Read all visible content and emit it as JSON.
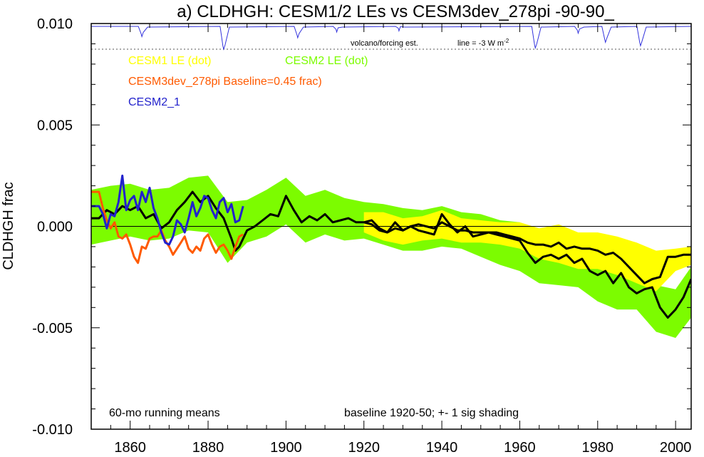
{
  "chart_data": {
    "type": "line",
    "title": "a) CLDHGH: CESM1/2 LEs vs CESM3dev_278pi -90-90_",
    "ylabel": "CLDHGH frac",
    "xlabel": "",
    "xlim": [
      1850,
      2004
    ],
    "ylim": [
      -0.01,
      0.01
    ],
    "x_ticks": [
      1860,
      1880,
      1900,
      1920,
      1940,
      1960,
      1980,
      2000
    ],
    "x_tick_labels": [
      "1860",
      "1880",
      "1900",
      "1920",
      "1940",
      "1960",
      "1980",
      "2000"
    ],
    "y_ticks": [
      0.01,
      0.005,
      0.0,
      -0.005,
      -0.01
    ],
    "y_tick_labels": [
      "0.010",
      "0.005",
      "0.000",
      "-0.005",
      "-0.010"
    ],
    "zero_line": true,
    "grid": false,
    "legend_entries": [
      {
        "label": "CESM1 LE (dot)",
        "color": "#ffff00"
      },
      {
        "label": "CESM2 LE (dot)",
        "color": "#7cfc00"
      },
      {
        "label": "CESM3dev_278pi Baseline=0.45 frac)",
        "color": "#ff5a00"
      },
      {
        "label": "CESM2_1",
        "color": "#2222cc"
      }
    ],
    "annotations": {
      "volcano_label": "volcano/forcing est.",
      "line_label": "line = -3 W m",
      "line_label_sup": "-2",
      "bottom_left": "60-mo running means",
      "bottom_right": "baseline 1920-50; +- 1 sig shading"
    },
    "colors": {
      "cesm1_band": "#ffff00",
      "cesm2_band": "#7cfc00",
      "cesm3": "#ff5a00",
      "cesm2_1": "#2222cc",
      "ensemble_mean": "#000000",
      "volcano": "#3333dd"
    },
    "volcano_events": [
      {
        "year": 1863,
        "depth": 0.45
      },
      {
        "year": 1884,
        "depth": 1.0
      },
      {
        "year": 1903,
        "depth": 0.5
      },
      {
        "year": 1913,
        "depth": 0.25
      },
      {
        "year": 1929,
        "depth": 0.2
      },
      {
        "year": 1964,
        "depth": 0.95
      },
      {
        "year": 1975,
        "depth": 0.3
      },
      {
        "year": 1982,
        "depth": 0.7
      },
      {
        "year": 1991,
        "depth": 0.85
      }
    ],
    "series": [
      {
        "name": "CESM2 LE (dot)",
        "kind": "band",
        "x": [
          1850,
          1855,
          1860,
          1865,
          1870,
          1875,
          1880,
          1885,
          1890,
          1895,
          1900,
          1905,
          1910,
          1915,
          1920,
          1925,
          1930,
          1935,
          1940,
          1945,
          1950,
          1955,
          1960,
          1965,
          1970,
          1975,
          1980,
          1985,
          1990,
          1995,
          2000,
          2004
        ],
        "upper": [
          0.0018,
          0.002,
          0.0021,
          0.0018,
          0.0019,
          0.0024,
          0.0025,
          0.0012,
          0.0013,
          0.0018,
          0.0024,
          0.0015,
          0.0018,
          0.0014,
          0.0012,
          0.0011,
          0.0009,
          0.0008,
          0.001,
          0.0007,
          0.0006,
          0.0003,
          0.0002,
          -0.0006,
          -0.0008,
          -0.0011,
          -0.0016,
          -0.0019,
          -0.0023,
          -0.0029,
          -0.0031,
          -0.002
        ],
        "lower": [
          -0.0009,
          -0.0007,
          -0.0005,
          -0.0007,
          -0.0006,
          -0.0002,
          -0.0003,
          -0.0018,
          -0.0008,
          -0.0005,
          0.0001,
          -0.0008,
          -0.0004,
          -0.0007,
          -0.0006,
          -0.0009,
          -0.0012,
          -0.0012,
          -0.001,
          -0.0011,
          -0.0015,
          -0.0019,
          -0.0022,
          -0.0028,
          -0.0029,
          -0.003,
          -0.0037,
          -0.0041,
          -0.0041,
          -0.0052,
          -0.0055,
          -0.0045
        ]
      },
      {
        "name": "CESM1 LE (dot)",
        "kind": "band",
        "x": [
          1920,
          1925,
          1930,
          1935,
          1940,
          1945,
          1950,
          1955,
          1960,
          1965,
          1970,
          1975,
          1980,
          1985,
          1990,
          1995,
          2000,
          2004
        ],
        "upper": [
          0.0007,
          0.0007,
          0.0004,
          0.0005,
          0.0008,
          0.0004,
          0.0003,
          0.0002,
          0.0002,
          -0.0001,
          0.0001,
          -0.0003,
          -0.0003,
          -0.0005,
          -0.0008,
          -0.0012,
          -0.0011,
          -0.001
        ],
        "lower": [
          -0.0003,
          -0.0007,
          -0.0009,
          -0.0007,
          -0.0006,
          -0.0008,
          -0.0008,
          -0.0009,
          -0.0011,
          -0.0016,
          -0.0018,
          -0.0021,
          -0.0021,
          -0.0024,
          -0.0028,
          -0.0032,
          -0.0022,
          -0.0019
        ]
      },
      {
        "name": "CESM2 LE ensemble mean",
        "kind": "line",
        "color": "#000000",
        "x": [
          1850,
          1852,
          1854,
          1856,
          1858,
          1860,
          1862,
          1864,
          1866,
          1868,
          1870,
          1872,
          1874,
          1876,
          1878,
          1880,
          1882,
          1884,
          1886,
          1887,
          1888,
          1890,
          1892,
          1894,
          1896,
          1898,
          1900,
          1902,
          1904,
          1906,
          1908,
          1910,
          1912,
          1914,
          1916,
          1918,
          1920,
          1922,
          1924,
          1926,
          1928,
          1930,
          1932,
          1934,
          1936,
          1938,
          1940,
          1942,
          1944,
          1946,
          1948,
          1950,
          1952,
          1954,
          1956,
          1958,
          1960,
          1962,
          1964,
          1966,
          1968,
          1970,
          1972,
          1974,
          1976,
          1978,
          1980,
          1982,
          1984,
          1986,
          1988,
          1990,
          1992,
          1994,
          1996,
          1998,
          2000,
          2002,
          2004
        ],
        "y": [
          0.0004,
          0.0004,
          0.0008,
          0.0006,
          0.001,
          0.0008,
          0.001,
          0.0004,
          0.0006,
          -0.0001,
          0.0002,
          0.0008,
          0.0012,
          0.0017,
          0.0012,
          0.0015,
          0.0009,
          0.0004,
          -0.0006,
          -0.0012,
          -0.001,
          -0.0002,
          0.0,
          0.0003,
          0.0006,
          0.0005,
          0.0015,
          0.0008,
          0.0002,
          0.0005,
          0.0003,
          0.0006,
          0.0002,
          0.0003,
          0.0004,
          0.0002,
          0.0002,
          0.0003,
          -0.0001,
          -0.0003,
          0.0002,
          -0.0002,
          0.0,
          -0.0002,
          -0.0003,
          -0.0004,
          0.0006,
          0.0001,
          -0.0003,
          0.0,
          -0.0005,
          -0.0004,
          -0.0003,
          -0.0004,
          -0.0005,
          -0.0006,
          -0.0007,
          -0.0013,
          -0.0018,
          -0.0015,
          -0.0014,
          -0.0016,
          -0.0014,
          -0.0018,
          -0.0016,
          -0.0022,
          -0.0024,
          -0.0022,
          -0.0028,
          -0.0023,
          -0.003,
          -0.0033,
          -0.0031,
          -0.003,
          -0.004,
          -0.0045,
          -0.0041,
          -0.0035,
          -0.0026
        ]
      },
      {
        "name": "CESM1 LE ensemble mean",
        "kind": "line",
        "color": "#000000",
        "x": [
          1920,
          1922,
          1924,
          1926,
          1928,
          1930,
          1932,
          1934,
          1936,
          1938,
          1940,
          1942,
          1944,
          1946,
          1948,
          1950,
          1952,
          1954,
          1956,
          1958,
          1960,
          1962,
          1964,
          1966,
          1968,
          1970,
          1972,
          1974,
          1976,
          1978,
          1980,
          1982,
          1984,
          1986,
          1988,
          1990,
          1992,
          1994,
          1996,
          1998,
          2000,
          2002,
          2004
        ],
        "y": [
          0.0002,
          0.0001,
          -0.0002,
          -0.0003,
          -0.0001,
          -0.0002,
          0.0,
          0.0001,
          0.0,
          -0.0001,
          0.0002,
          0.0,
          -0.0002,
          -0.0002,
          -0.0003,
          -0.0003,
          -0.0003,
          -0.0003,
          -0.0004,
          -0.0005,
          -0.0006,
          -0.0008,
          -0.0009,
          -0.0009,
          -0.001,
          -0.0008,
          -0.0011,
          -0.001,
          -0.0011,
          -0.0011,
          -0.0012,
          -0.0014,
          -0.0013,
          -0.0016,
          -0.002,
          -0.0024,
          -0.0028,
          -0.0026,
          -0.0025,
          -0.0015,
          -0.0015,
          -0.0014,
          -0.0014
        ]
      },
      {
        "name": "CESM3dev_278pi",
        "kind": "line",
        "color": "#ff5a00",
        "x": [
          1850,
          1852,
          1853,
          1854,
          1855,
          1856,
          1857,
          1858,
          1859,
          1860,
          1861,
          1862,
          1863,
          1864,
          1865,
          1866,
          1867,
          1868,
          1869,
          1870,
          1871,
          1872,
          1873,
          1874,
          1875,
          1876,
          1877,
          1878,
          1879,
          1880,
          1881,
          1882,
          1883,
          1884,
          1885,
          1886,
          1887,
          1888,
          1889
        ],
        "y": [
          0.0017,
          0.0017,
          0.0009,
          0.0003,
          -0.0001,
          0.0002,
          -0.0005,
          -0.0006,
          -0.0004,
          -0.0009,
          -0.0015,
          -0.0018,
          -0.001,
          -0.0011,
          -0.0006,
          -0.0005,
          -0.0005,
          -0.0002,
          -0.0007,
          -0.001,
          -0.0014,
          -0.0011,
          -0.0008,
          -0.0005,
          -0.0011,
          -0.0013,
          -0.001,
          -0.0012,
          -0.0006,
          -0.0004,
          -0.0009,
          -0.0013,
          -0.001,
          -0.0009,
          -0.0012,
          -0.0016,
          -0.001,
          -0.0005,
          -0.0004
        ]
      },
      {
        "name": "CESM2_1",
        "kind": "line",
        "color": "#2222cc",
        "x": [
          1850,
          1852,
          1853,
          1854,
          1855,
          1856,
          1857,
          1858,
          1859,
          1860,
          1861,
          1862,
          1863,
          1864,
          1865,
          1866,
          1867,
          1868,
          1869,
          1870,
          1871,
          1872,
          1873,
          1874,
          1875,
          1876,
          1877,
          1878,
          1879,
          1880,
          1881,
          1882,
          1883,
          1884,
          1885,
          1886,
          1887,
          1888,
          1889
        ],
        "y": [
          0.001,
          0.001,
          0.0006,
          -0.0001,
          0.0006,
          0.0005,
          0.0012,
          0.0025,
          0.0008,
          0.0013,
          0.0015,
          0.0008,
          0.0017,
          0.0012,
          0.0019,
          0.0009,
          0.0004,
          -0.0003,
          -0.0008,
          -0.0009,
          -0.0005,
          0.0003,
          0.0001,
          -0.0003,
          0.0004,
          0.0012,
          0.0005,
          0.0009,
          0.0015,
          0.0014,
          0.0008,
          0.0004,
          0.0012,
          0.0014,
          0.0007,
          0.0011,
          0.0002,
          0.0003,
          0.001
        ]
      }
    ]
  }
}
